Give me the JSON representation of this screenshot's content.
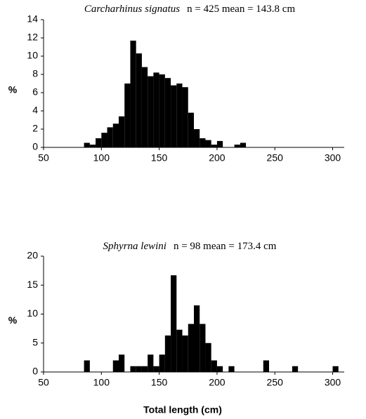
{
  "chart_data": [
    {
      "type": "histogram",
      "title": "Carcharhinus signatus",
      "subtitle": "n = 425 mean = 143.8 cm",
      "ylabel": "%",
      "color": "#000000",
      "bins": [
        85,
        90,
        95,
        100,
        105,
        110,
        115,
        120,
        125,
        130,
        135,
        140,
        145,
        150,
        155,
        160,
        165,
        170,
        175,
        180,
        185,
        190,
        195,
        200,
        205,
        210,
        215,
        220,
        225
      ],
      "values": [
        0.5,
        0.3,
        1,
        1.6,
        2.2,
        2.6,
        3.4,
        7,
        11.7,
        10.3,
        8.8,
        7.8,
        8.2,
        8,
        7.6,
        6.8,
        7,
        6.6,
        3.8,
        2,
        1,
        0.8,
        0.3,
        0.7,
        0,
        0,
        0.3,
        0.5
      ],
      "xlim": [
        50,
        310
      ],
      "xticks": [
        50,
        100,
        150,
        200,
        250,
        300
      ],
      "ylim": [
        0,
        14
      ],
      "yticks": [
        0,
        2,
        4,
        6,
        8,
        10,
        12,
        14
      ]
    },
    {
      "type": "histogram",
      "title": "Sphyrna lewini",
      "subtitle": "n = 98 mean = 173.4 cm",
      "ylabel": "%",
      "xlabel": "Total length (cm)",
      "color": "#000000",
      "bins": [
        85,
        90,
        95,
        100,
        105,
        110,
        115,
        120,
        125,
        130,
        135,
        140,
        145,
        150,
        155,
        160,
        165,
        170,
        175,
        180,
        185,
        190,
        195,
        200,
        205,
        210,
        215,
        220,
        225,
        230,
        235,
        240,
        245,
        250,
        255,
        260,
        265,
        270,
        275,
        280,
        285,
        290,
        295,
        300,
        305
      ],
      "values": [
        2,
        0,
        0,
        0,
        0,
        2,
        3,
        0,
        1,
        1,
        1,
        3,
        1,
        3,
        6.3,
        16.7,
        7.3,
        6.3,
        8.3,
        11.5,
        8.3,
        5,
        2,
        1,
        0,
        1,
        0,
        0,
        0,
        0,
        0,
        2,
        0,
        0,
        0,
        0,
        1,
        0,
        0,
        0,
        0,
        0,
        0,
        1
      ],
      "xlim": [
        50,
        310
      ],
      "xticks": [
        50,
        100,
        150,
        200,
        250,
        300
      ],
      "ylim": [
        0,
        20
      ],
      "yticks": [
        0,
        5,
        10,
        15,
        20
      ]
    }
  ]
}
